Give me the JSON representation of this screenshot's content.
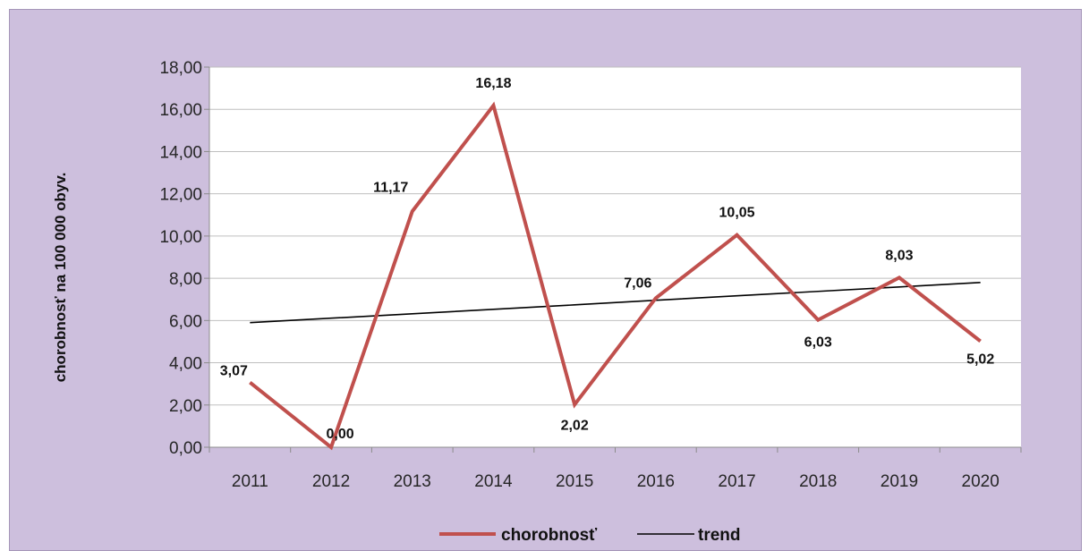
{
  "chart_data": {
    "type": "line",
    "categories": [
      "2011",
      "2012",
      "2013",
      "2014",
      "2015",
      "2016",
      "2017",
      "2018",
      "2019",
      "2020"
    ],
    "series": [
      {
        "name": "chorobnosť",
        "values": [
          3.07,
          0.0,
          11.17,
          16.18,
          2.02,
          7.06,
          10.05,
          6.03,
          8.03,
          5.02
        ],
        "data_labels": [
          "3,07",
          "0,00",
          "11,17",
          "16,18",
          "2,02",
          "7,06",
          "10,05",
          "6,03",
          "8,03",
          "5,02"
        ],
        "color": "#c0504d"
      },
      {
        "name": "trend",
        "values": [
          5.9,
          6.11,
          6.32,
          6.53,
          6.74,
          6.96,
          7.17,
          7.38,
          7.59,
          7.8
        ],
        "color": "#000000"
      }
    ],
    "title": "",
    "xlabel": "",
    "ylabel": "chorobnosť na 100 000 obyv.",
    "ylim": [
      0,
      18
    ],
    "yticks": [
      0,
      2,
      4,
      6,
      8,
      10,
      12,
      14,
      16,
      18
    ],
    "ytick_labels": [
      "0,00",
      "2,00",
      "4,00",
      "6,00",
      "8,00",
      "10,00",
      "12,00",
      "14,00",
      "16,00",
      "18,00"
    ],
    "grid": true,
    "legend_position": "bottom",
    "background_color": "#cdbfdd",
    "plot_background": "#ffffff"
  }
}
